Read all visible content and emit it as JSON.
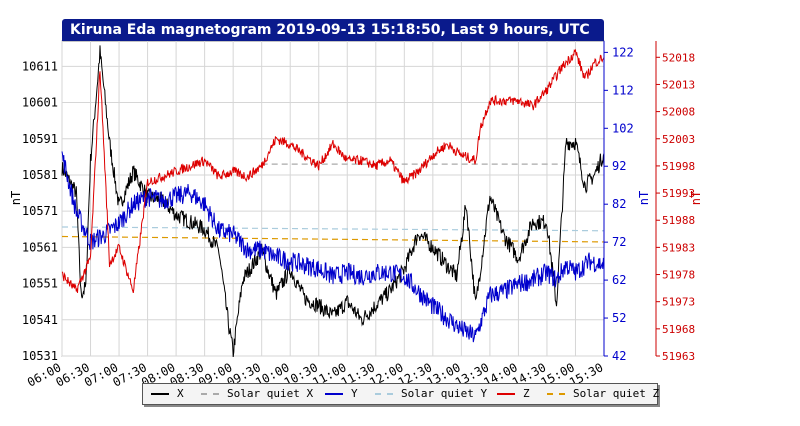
{
  "chart_data": {
    "type": "line",
    "title": "Kiruna Eda magnetogram 2019-09-13 15:18:50, Last 9 hours, UTC",
    "x_tick_labels": [
      "06:00",
      "06:30",
      "07:00",
      "07:30",
      "08:00",
      "08:30",
      "09:00",
      "09:30",
      "10:00",
      "10:30",
      "11:00",
      "11:30",
      "12:00",
      "12:30",
      "13:00",
      "13:30",
      "14:00",
      "14:30",
      "15:00",
      "15:30"
    ],
    "xlim": [
      "06:00",
      "15:30"
    ],
    "left_axis": {
      "label": "nT",
      "ylim": [
        10531,
        10618
      ],
      "ticks": [
        10531,
        10541,
        10551,
        10561,
        10571,
        10581,
        10591,
        10601,
        10611
      ],
      "color": "#000000"
    },
    "middle_axis": {
      "label": "nT",
      "ylim": [
        42,
        125
      ],
      "ticks": [
        42,
        52,
        62,
        72,
        82,
        92,
        102,
        112,
        122
      ],
      "color": "#0000cc"
    },
    "right_axis": {
      "label": "nT",
      "ylim": [
        51963,
        52021
      ],
      "ticks": [
        51963,
        51968,
        51973,
        51978,
        51983,
        51988,
        51993,
        51998,
        52003,
        52008,
        52013,
        52018
      ],
      "color": "#cc0000"
    },
    "grid": true,
    "legend_position": "bottom",
    "series": [
      {
        "name": "X",
        "axis": "left",
        "color": "#000000",
        "style": "solid",
        "points": [
          [
            "06:00",
            10583
          ],
          [
            "06:15",
            10576
          ],
          [
            "06:20",
            10548
          ],
          [
            "06:25",
            10550
          ],
          [
            "06:30",
            10585
          ],
          [
            "06:40",
            10615
          ],
          [
            "06:50",
            10590
          ],
          [
            "07:00",
            10572
          ],
          [
            "07:15",
            10582
          ],
          [
            "07:30",
            10575
          ],
          [
            "07:45",
            10574
          ],
          [
            "08:00",
            10570
          ],
          [
            "08:15",
            10568
          ],
          [
            "08:30",
            10566
          ],
          [
            "08:45",
            10560
          ],
          [
            "08:55",
            10540
          ],
          [
            "09:00",
            10532
          ],
          [
            "09:10",
            10552
          ],
          [
            "09:30",
            10560
          ],
          [
            "09:45",
            10548
          ],
          [
            "10:00",
            10555
          ],
          [
            "10:15",
            10547
          ],
          [
            "10:30",
            10545
          ],
          [
            "10:45",
            10542
          ],
          [
            "11:00",
            10546
          ],
          [
            "11:15",
            10541
          ],
          [
            "11:30",
            10545
          ],
          [
            "11:45",
            10549
          ],
          [
            "12:00",
            10555
          ],
          [
            "12:15",
            10565
          ],
          [
            "12:30",
            10561
          ],
          [
            "12:45",
            10556
          ],
          [
            "12:55",
            10553
          ],
          [
            "13:05",
            10573
          ],
          [
            "13:15",
            10545
          ],
          [
            "13:30",
            10575
          ],
          [
            "13:45",
            10564
          ],
          [
            "14:00",
            10558
          ],
          [
            "14:15",
            10568
          ],
          [
            "14:30",
            10568
          ],
          [
            "14:40",
            10545
          ],
          [
            "14:50",
            10590
          ],
          [
            "15:00",
            10590
          ],
          [
            "15:10",
            10578
          ],
          [
            "15:20",
            10581
          ],
          [
            "15:30",
            10587
          ]
        ]
      },
      {
        "name": "Solar quiet X",
        "axis": "left",
        "color": "#aaaaaa",
        "style": "dashed",
        "points": [
          [
            "09:30",
            10584
          ],
          [
            "15:30",
            10584
          ]
        ]
      },
      {
        "name": "Y",
        "axis": "middle",
        "color": "#0000cc",
        "style": "solid",
        "points": [
          [
            "06:00",
            95
          ],
          [
            "06:15",
            80
          ],
          [
            "06:30",
            72
          ],
          [
            "06:45",
            74
          ],
          [
            "07:00",
            77
          ],
          [
            "07:15",
            82
          ],
          [
            "07:30",
            84
          ],
          [
            "07:45",
            83
          ],
          [
            "08:00",
            84
          ],
          [
            "08:15",
            85
          ],
          [
            "08:30",
            82
          ],
          [
            "08:45",
            75
          ],
          [
            "09:00",
            74
          ],
          [
            "09:15",
            70
          ],
          [
            "09:30",
            70
          ],
          [
            "09:45",
            68
          ],
          [
            "10:00",
            67
          ],
          [
            "10:15",
            66
          ],
          [
            "10:30",
            65
          ],
          [
            "10:45",
            63
          ],
          [
            "11:00",
            64
          ],
          [
            "11:15",
            63
          ],
          [
            "11:30",
            64
          ],
          [
            "11:45",
            64
          ],
          [
            "12:00",
            63
          ],
          [
            "12:15",
            59
          ],
          [
            "12:30",
            55
          ],
          [
            "12:45",
            52
          ],
          [
            "13:00",
            49
          ],
          [
            "13:15",
            47
          ],
          [
            "13:30",
            58
          ],
          [
            "13:45",
            59
          ],
          [
            "14:00",
            61
          ],
          [
            "14:15",
            62
          ],
          [
            "14:30",
            64
          ],
          [
            "14:40",
            62
          ],
          [
            "14:50",
            66
          ],
          [
            "15:00",
            64
          ],
          [
            "15:15",
            67
          ],
          [
            "15:30",
            66
          ]
        ]
      },
      {
        "name": "Solar quiet Y",
        "axis": "middle",
        "color": "#aaccdd",
        "style": "dashed",
        "points": [
          [
            "06:00",
            76
          ],
          [
            "15:30",
            75
          ]
        ]
      },
      {
        "name": "Z",
        "axis": "right",
        "color": "#dd0000",
        "style": "solid",
        "points": [
          [
            "06:00",
            51978
          ],
          [
            "06:15",
            51975
          ],
          [
            "06:30",
            51981
          ],
          [
            "06:40",
            52016
          ],
          [
            "06:50",
            51980
          ],
          [
            "07:00",
            51983
          ],
          [
            "07:15",
            51975
          ],
          [
            "07:30",
            51995
          ],
          [
            "07:45",
            51996
          ],
          [
            "08:00",
            51997
          ],
          [
            "08:15",
            51998
          ],
          [
            "08:30",
            51999
          ],
          [
            "08:45",
            51996
          ],
          [
            "09:00",
            51997
          ],
          [
            "09:15",
            51996
          ],
          [
            "09:30",
            51998
          ],
          [
            "09:45",
            52003
          ],
          [
            "10:00",
            52002
          ],
          [
            "10:15",
            52000
          ],
          [
            "10:30",
            51998
          ],
          [
            "10:45",
            52002
          ],
          [
            "11:00",
            51999
          ],
          [
            "11:15",
            51999
          ],
          [
            "11:30",
            51998
          ],
          [
            "11:45",
            51999
          ],
          [
            "12:00",
            51995
          ],
          [
            "12:15",
            51997
          ],
          [
            "12:30",
            52000
          ],
          [
            "12:45",
            52002
          ],
          [
            "13:00",
            52000
          ],
          [
            "13:15",
            51999
          ],
          [
            "13:20",
            52005
          ],
          [
            "13:30",
            52010
          ],
          [
            "13:45",
            52010
          ],
          [
            "14:00",
            52010
          ],
          [
            "14:15",
            52009
          ],
          [
            "14:30",
            52012
          ],
          [
            "14:45",
            52016
          ],
          [
            "15:00",
            52019
          ],
          [
            "15:10",
            52014
          ],
          [
            "15:20",
            52017
          ],
          [
            "15:30",
            52018
          ]
        ]
      },
      {
        "name": "Solar quiet Z",
        "axis": "right",
        "color": "#dd9900",
        "style": "dashed",
        "points": [
          [
            "06:00",
            51985
          ],
          [
            "15:30",
            51984
          ]
        ]
      }
    ]
  }
}
